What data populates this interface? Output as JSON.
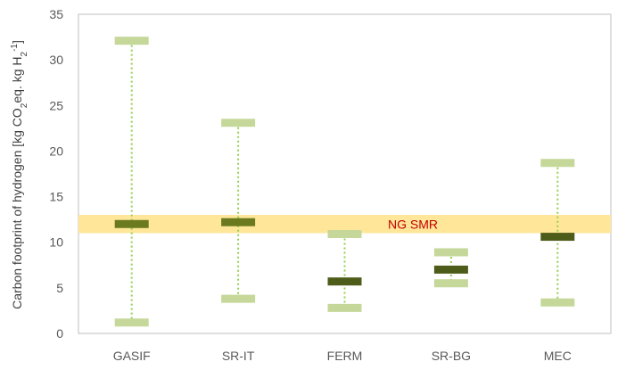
{
  "chart_data": {
    "type": "range",
    "ylabel_parts": [
      "Carbon footprint of hydrogen [kg CO",
      "2",
      "eq. kg H",
      "2",
      "-1",
      "]"
    ],
    "ylim": [
      0,
      35
    ],
    "yticks": [
      "0",
      "5",
      "10",
      "15",
      "20",
      "25",
      "30",
      "35"
    ],
    "categories": [
      "GASIF",
      "SR-IT",
      "FERM",
      "SR-BG",
      "MEC"
    ],
    "series": [
      {
        "stat": "min",
        "values": [
          1.2,
          3.8,
          2.8,
          5.5,
          3.4
        ]
      },
      {
        "stat": "central",
        "values": [
          12.0,
          12.2,
          5.7,
          7.0,
          10.6
        ]
      },
      {
        "stat": "max",
        "values": [
          32.1,
          23.1,
          10.9,
          8.9,
          18.7
        ]
      }
    ],
    "reference_band": {
      "label": "NG SMR",
      "range": [
        11.0,
        13.0
      ],
      "color": "#ffe699"
    },
    "colors": {
      "range_marker": "#c5d89a",
      "central_marker": "#6b7a1f",
      "central_marker_dark": "#4e5c1a",
      "whisker": "#92d050",
      "axis": "#bfbfbf"
    },
    "grid": false
  }
}
